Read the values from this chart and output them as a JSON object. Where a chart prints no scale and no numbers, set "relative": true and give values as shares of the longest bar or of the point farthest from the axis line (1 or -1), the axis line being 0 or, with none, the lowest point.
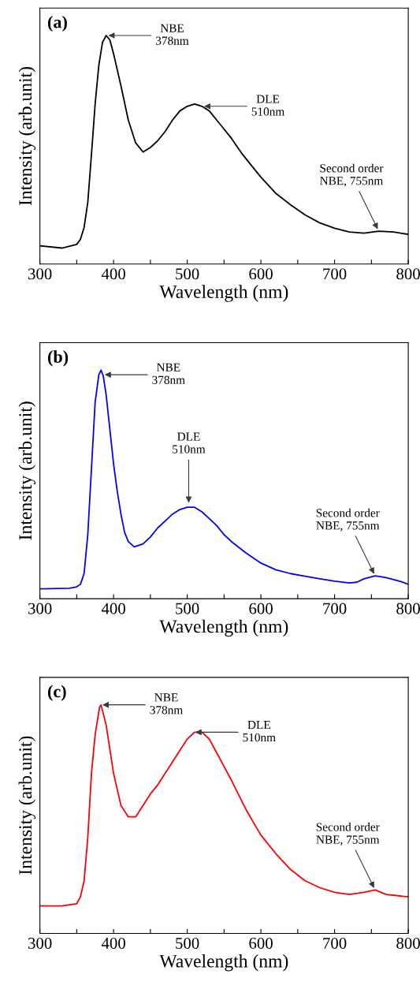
{
  "chart_data": [
    {
      "type": "line",
      "title": "(a)",
      "xlabel": "Wavelength (nm)",
      "ylabel": "Intensity (arb.unit)",
      "relative": true,
      "xlim": [
        300,
        800
      ],
      "xticks": [
        300,
        {
          "value": 350,
          "label": null
        },
        400,
        {
          "value": 450,
          "label": null
        },
        500,
        {
          "value": 550,
          "label": null
        },
        600,
        {
          "value": 650,
          "label": null
        },
        700,
        {
          "value": 750,
          "label": null
        },
        800
      ],
      "series": [
        {
          "color": "#000000",
          "x": [
            300,
            330,
            350,
            355,
            360,
            365,
            370,
            375,
            380,
            385,
            390,
            395,
            400,
            410,
            420,
            430,
            440,
            450,
            460,
            470,
            480,
            490,
            500,
            510,
            520,
            530,
            540,
            550,
            560,
            575,
            590,
            600,
            620,
            640,
            660,
            680,
            700,
            720,
            740,
            760,
            780,
            800
          ],
          "values": [
            0.08,
            0.07,
            0.086,
            0.108,
            0.16,
            0.27,
            0.48,
            0.7,
            0.87,
            0.97,
            1.0,
            0.98,
            0.92,
            0.78,
            0.63,
            0.53,
            0.49,
            0.51,
            0.54,
            0.58,
            0.63,
            0.67,
            0.69,
            0.7,
            0.69,
            0.67,
            0.63,
            0.59,
            0.55,
            0.48,
            0.42,
            0.38,
            0.31,
            0.26,
            0.215,
            0.18,
            0.157,
            0.14,
            0.135,
            0.144,
            0.14,
            0.13
          ]
        }
      ],
      "annotations": [
        {
          "text": "NBE\n378nm",
          "x": 390,
          "y": 1.0
        },
        {
          "text": "DLE\n510nm",
          "x": 520,
          "y": 0.69
        },
        {
          "text": "Second order\nNBE, 755nm",
          "x": 760,
          "y": 0.144
        }
      ],
      "grid": false,
      "legend": false,
      "marker": "none",
      "line_style": "solid"
    },
    {
      "type": "line",
      "title": "(b)",
      "xlabel": "Wavelength (nm)",
      "ylabel": "Intensity (arb.unit)",
      "relative": true,
      "xlim": [
        300,
        800
      ],
      "xticks": [
        300,
        {
          "value": 350,
          "label": null
        },
        400,
        {
          "value": 450,
          "label": null
        },
        500,
        {
          "value": 550,
          "label": null
        },
        600,
        {
          "value": 650,
          "label": null
        },
        700,
        {
          "value": 750,
          "label": null
        },
        800
      ],
      "series": [
        {
          "color": "#0000ff",
          "x": [
            300,
            340,
            350,
            355,
            360,
            365,
            370,
            375,
            380,
            383,
            386,
            390,
            395,
            400,
            405,
            410,
            415,
            420,
            428,
            440,
            450,
            460,
            470,
            480,
            490,
            500,
            510,
            520,
            530,
            540,
            550,
            560,
            580,
            600,
            620,
            640,
            660,
            680,
            700,
            720,
            730,
            740,
            755,
            770,
            790,
            800
          ],
          "values": [
            0.043,
            0.046,
            0.052,
            0.063,
            0.11,
            0.28,
            0.57,
            0.86,
            0.98,
            1.0,
            0.975,
            0.89,
            0.74,
            0.59,
            0.47,
            0.37,
            0.29,
            0.25,
            0.227,
            0.24,
            0.27,
            0.31,
            0.34,
            0.37,
            0.39,
            0.4,
            0.4,
            0.38,
            0.35,
            0.32,
            0.28,
            0.25,
            0.2,
            0.156,
            0.127,
            0.11,
            0.098,
            0.087,
            0.077,
            0.069,
            0.072,
            0.087,
            0.1,
            0.092,
            0.075,
            0.063
          ]
        }
      ],
      "annotations": [
        {
          "text": "NBE\n378nm",
          "x": 385,
          "y": 0.98
        },
        {
          "text": "DLE\n510nm",
          "x": 502,
          "y": 0.41
        },
        {
          "text": "Second order\nNBE, 755nm",
          "x": 755,
          "y": 0.1
        }
      ],
      "grid": false,
      "legend": false,
      "marker": "none",
      "line_style": "solid"
    },
    {
      "type": "line",
      "title": "(c)",
      "xlabel": "Wavelength (nm)",
      "ylabel": "Intensity (arb.unit)",
      "relative": true,
      "xlim": [
        300,
        800
      ],
      "xticks": [
        300,
        {
          "value": 350,
          "label": null
        },
        400,
        {
          "value": 450,
          "label": null
        },
        500,
        {
          "value": 550,
          "label": null
        },
        600,
        {
          "value": 650,
          "label": null
        },
        700,
        {
          "value": 750,
          "label": null
        },
        800
      ],
      "series": [
        {
          "color": "#ff0000",
          "x": [
            300,
            330,
            350,
            355,
            360,
            365,
            370,
            375,
            381,
            383,
            390,
            400,
            410,
            420,
            430,
            440,
            450,
            460,
            470,
            480,
            490,
            500,
            510,
            520,
            530,
            540,
            550,
            560,
            580,
            600,
            620,
            640,
            660,
            680,
            700,
            720,
            740,
            755,
            770,
            800
          ],
          "values": [
            0.12,
            0.12,
            0.13,
            0.16,
            0.23,
            0.42,
            0.7,
            0.87,
            0.99,
            1.0,
            0.91,
            0.7,
            0.56,
            0.51,
            0.51,
            0.56,
            0.61,
            0.65,
            0.7,
            0.75,
            0.8,
            0.85,
            0.88,
            0.88,
            0.85,
            0.79,
            0.73,
            0.67,
            0.54,
            0.43,
            0.35,
            0.28,
            0.23,
            0.2,
            0.18,
            0.17,
            0.18,
            0.19,
            0.17,
            0.16
          ]
        }
      ],
      "annotations": [
        {
          "text": "NBE\n378nm",
          "x": 382,
          "y": 1.0
        },
        {
          "text": "DLE\n510nm",
          "x": 508,
          "y": 0.88
        },
        {
          "text": "Second order\nNBE, 755nm",
          "x": 755,
          "y": 0.19
        }
      ],
      "grid": false,
      "legend": false,
      "marker": "none",
      "line_style": "solid"
    }
  ]
}
